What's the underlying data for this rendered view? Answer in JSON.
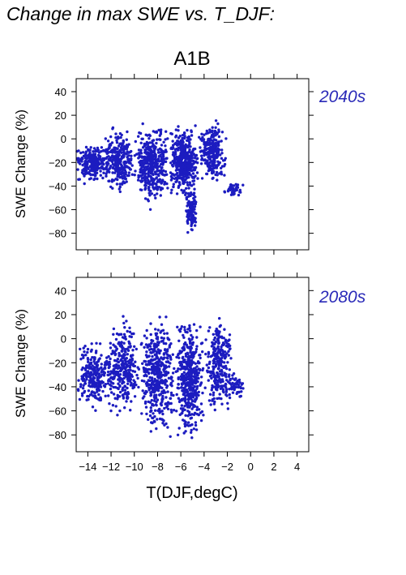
{
  "page": {
    "title": "Change in max SWE vs. T_DJF:"
  },
  "figure": {
    "scenario": "A1B",
    "xlabel": "T(DJF,degC)"
  },
  "colors": {
    "points": "#1c1cc0",
    "period_label": "#2a2ab8",
    "axis": "#000000"
  },
  "chart_data": [
    {
      "type": "scatter",
      "period": "2040s",
      "title": "A1B",
      "xlabel": "T(DJF,degC)",
      "ylabel": "SWE Change (%)",
      "xlim": [
        -15,
        5
      ],
      "ylim": [
        -94,
        51
      ],
      "xticks": [
        -14,
        -12,
        -10,
        -8,
        -6,
        -4,
        -2,
        0,
        2,
        4
      ],
      "yticks": [
        -80,
        -60,
        -40,
        -20,
        0,
        20,
        40
      ],
      "grid": false,
      "series": [
        {
          "color": "#1c1cc0",
          "clusters": [
            {
              "x_range": [
                -15.0,
                -12.0
              ],
              "y_range": [
                -42,
                2
              ],
              "count": 220
            },
            {
              "x_range": [
                -12.5,
                -10.0
              ],
              "y_range": [
                -52,
                16
              ],
              "count": 260
            },
            {
              "x_range": [
                -10.0,
                -7.0
              ],
              "y_range": [
                -62,
                18
              ],
              "count": 420
            },
            {
              "x_range": [
                -7.0,
                -4.5
              ],
              "y_range": [
                -56,
                19
              ],
              "count": 420
            },
            {
              "x_range": [
                -4.5,
                -2.0
              ],
              "y_range": [
                -40,
                18
              ],
              "count": 260
            },
            {
              "x_range": [
                -5.6,
                -4.6
              ],
              "y_range": [
                -86,
                -40
              ],
              "count": 90
            },
            {
              "x_range": [
                -2.5,
                -0.5
              ],
              "y_range": [
                -50,
                -36
              ],
              "count": 40
            }
          ]
        }
      ]
    },
    {
      "type": "scatter",
      "period": "2080s",
      "title": "",
      "xlabel": "T(DJF,degC)",
      "ylabel": "SWE Change (%)",
      "xlim": [
        -15,
        5
      ],
      "ylim": [
        -94,
        51
      ],
      "xticks": [
        -14,
        -12,
        -10,
        -8,
        -6,
        -4,
        -2,
        0,
        2,
        4
      ],
      "yticks": [
        -80,
        -60,
        -40,
        -20,
        0,
        20,
        40
      ],
      "grid": false,
      "series": [
        {
          "color": "#1c1cc0",
          "clusters": [
            {
              "x_range": [
                -15.0,
                -12.0
              ],
              "y_range": [
                -66,
                4
              ],
              "count": 240
            },
            {
              "x_range": [
                -12.5,
                -9.5
              ],
              "y_range": [
                -72,
                22
              ],
              "count": 300
            },
            {
              "x_range": [
                -9.5,
                -6.5
              ],
              "y_range": [
                -85,
                25
              ],
              "count": 440
            },
            {
              "x_range": [
                -6.5,
                -4.0
              ],
              "y_range": [
                -90,
                25
              ],
              "count": 440
            },
            {
              "x_range": [
                -4.0,
                -1.5
              ],
              "y_range": [
                -70,
                22
              ],
              "count": 260
            },
            {
              "x_range": [
                -2.0,
                -0.5
              ],
              "y_range": [
                -52,
                -26
              ],
              "count": 50
            }
          ]
        }
      ]
    }
  ]
}
